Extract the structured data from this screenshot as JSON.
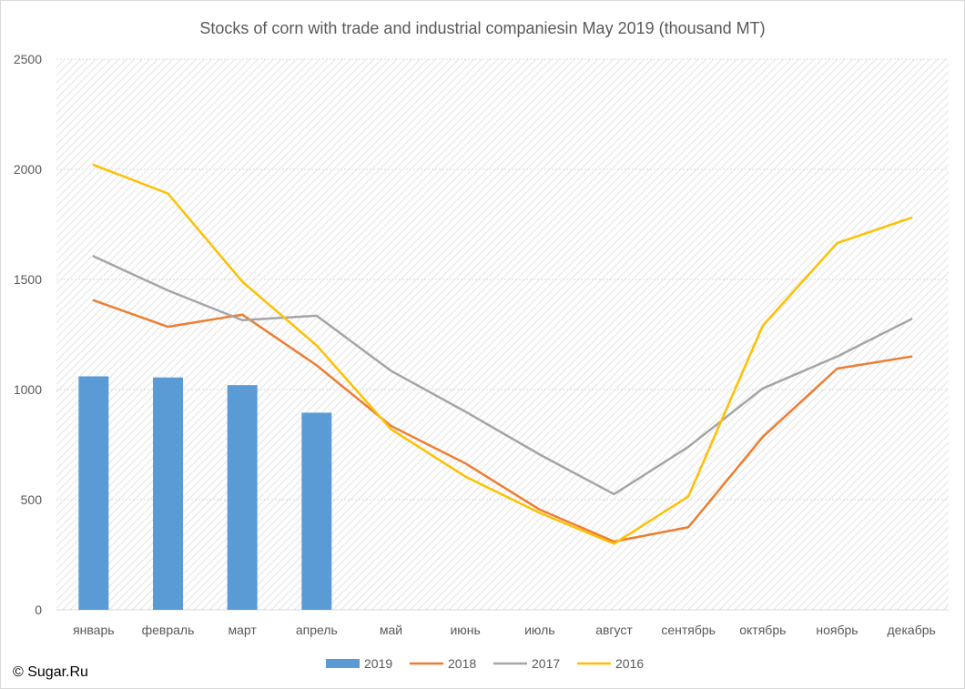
{
  "copyright": "© Sugar.Ru",
  "chart_data": {
    "type": "bar",
    "title": "Stocks of corn with trade and industrial companiesin May 2019 (thousand MT)",
    "xlabel": "",
    "ylabel": "",
    "ylim": [
      0,
      2500
    ],
    "yticks": [
      0,
      500,
      1000,
      1500,
      2000,
      2500
    ],
    "grid": true,
    "legend_position": "bottom",
    "categories": [
      "январь",
      "февраль",
      "март",
      "апрель",
      "май",
      "июнь",
      "июль",
      "август",
      "сентябрь",
      "октябрь",
      "ноябрь",
      "декабрь"
    ],
    "series": [
      {
        "name": "2019",
        "type": "bar",
        "color": "#5b9bd5",
        "values": [
          1060,
          1055,
          1020,
          895,
          null,
          null,
          null,
          null,
          null,
          null,
          null,
          null
        ]
      },
      {
        "name": "2018",
        "type": "line",
        "color": "#ed7d31",
        "values": [
          1405,
          1285,
          1340,
          1110,
          835,
          665,
          455,
          310,
          375,
          785,
          1095,
          1150
        ]
      },
      {
        "name": "2017",
        "type": "line",
        "color": "#a5a5a5",
        "values": [
          1605,
          1450,
          1315,
          1335,
          1085,
          900,
          705,
          525,
          740,
          1005,
          1150,
          1320
        ]
      },
      {
        "name": "2016",
        "type": "line",
        "color": "#ffc000",
        "values": [
          2020,
          1890,
          1490,
          1200,
          820,
          605,
          440,
          300,
          515,
          1290,
          1665,
          1780
        ]
      }
    ]
  }
}
